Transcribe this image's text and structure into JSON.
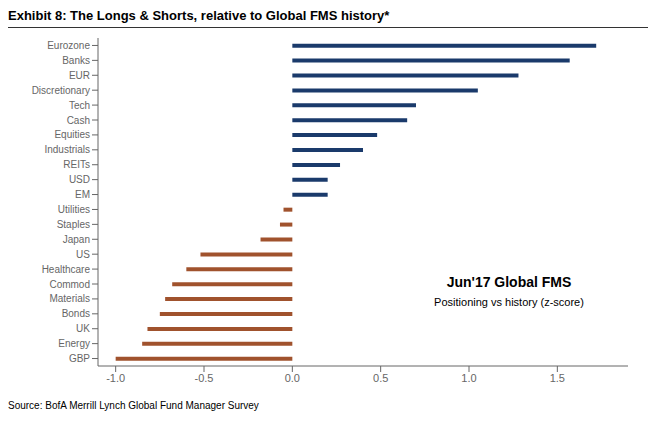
{
  "chart_data": {
    "type": "bar",
    "orientation": "horizontal",
    "title": "Exhibit 8: The Longs & Shorts, relative to Global FMS history*",
    "categories": [
      "Eurozone",
      "Banks",
      "EUR",
      "Discretionary",
      "Tech",
      "Cash",
      "Equities",
      "Industrials",
      "REITs",
      "USD",
      "EM",
      "Utilities",
      "Staples",
      "Japan",
      "US",
      "Healthcare",
      "Commod",
      "Materials",
      "Bonds",
      "UK",
      "Energy",
      "GBP"
    ],
    "values": [
      1.72,
      1.57,
      1.28,
      1.05,
      0.7,
      0.65,
      0.48,
      0.4,
      0.27,
      0.2,
      0.2,
      -0.05,
      -0.07,
      -0.18,
      -0.52,
      -0.6,
      -0.68,
      -0.72,
      -0.75,
      -0.82,
      -0.85,
      -1.0
    ],
    "colors": [
      "#1a3a6b",
      "#1a3a6b",
      "#1a3a6b",
      "#1a3a6b",
      "#1a3a6b",
      "#1a3a6b",
      "#1a3a6b",
      "#1a3a6b",
      "#1a3a6b",
      "#1a3a6b",
      "#1a3a6b",
      "#a0522d",
      "#a0522d",
      "#a0522d",
      "#a0522d",
      "#a0522d",
      "#a0522d",
      "#a0522d",
      "#a0522d",
      "#a0522d",
      "#a0522d",
      "#a0522d"
    ],
    "xlim": [
      -1.1,
      1.9
    ],
    "xticks": [
      {
        "value": -1.0,
        "label": "-1.0"
      },
      -0.5,
      {
        "value": 0.0,
        "label": "0.0"
      },
      0.5,
      {
        "value": 1.0,
        "label": "1.0"
      },
      1.5
    ],
    "annotations": [
      "Jun'17 Global FMS",
      "Positioning vs history (z-score)",
      "Source: BofA Merrill Lynch Global Fund Manager Survey"
    ],
    "grid": false
  }
}
